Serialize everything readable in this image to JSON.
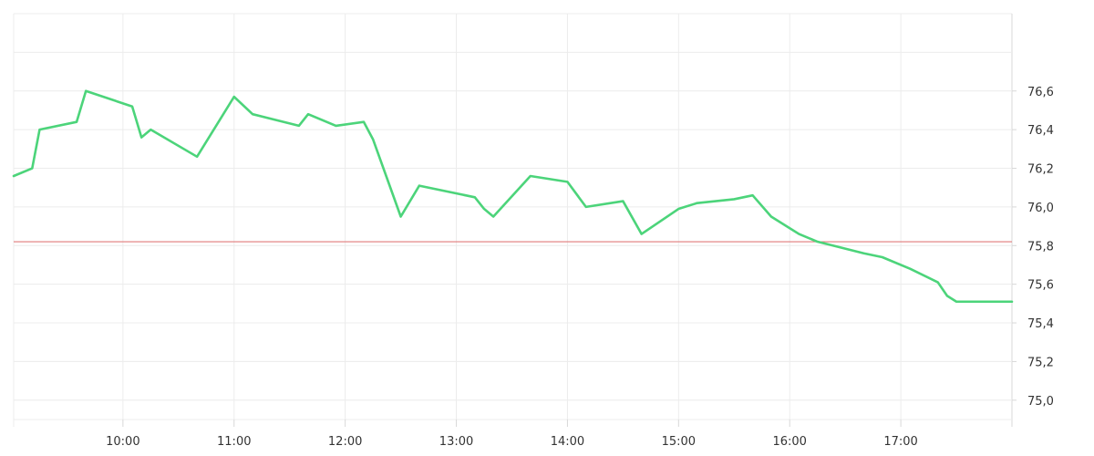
{
  "chart_data": {
    "type": "line",
    "title": "",
    "xlabel": "",
    "ylabel": "",
    "grid": true,
    "x_range": [
      "09:01",
      "18:00"
    ],
    "ylim": [
      74.9,
      77.0
    ],
    "x_ticks": [
      "10:00",
      "11:00",
      "12:00",
      "13:00",
      "14:00",
      "15:00",
      "16:00",
      "17:00"
    ],
    "y_ticks": [
      "75,0",
      "75,2",
      "75,4",
      "75,6",
      "75,8",
      "76,0",
      "76,2",
      "76,4",
      "76,6"
    ],
    "y_tick_values": [
      75.0,
      75.2,
      75.4,
      75.6,
      75.8,
      76.0,
      76.2,
      76.4,
      76.6
    ],
    "reference_line": {
      "value": 75.82,
      "color": "#e07b7b"
    },
    "series": [
      {
        "color": "#4cd47a",
        "points": [
          [
            "09:01",
            76.16
          ],
          [
            "09:11",
            76.2
          ],
          [
            "09:15",
            76.4
          ],
          [
            "09:35",
            76.44
          ],
          [
            "09:40",
            76.6
          ],
          [
            "10:05",
            76.52
          ],
          [
            "10:10",
            76.36
          ],
          [
            "10:15",
            76.4
          ],
          [
            "10:40",
            76.26
          ],
          [
            "11:00",
            76.57
          ],
          [
            "11:10",
            76.48
          ],
          [
            "11:35",
            76.42
          ],
          [
            "11:40",
            76.48
          ],
          [
            "11:55",
            76.42
          ],
          [
            "12:10",
            76.44
          ],
          [
            "12:15",
            76.35
          ],
          [
            "12:30",
            75.95
          ],
          [
            "12:40",
            76.11
          ],
          [
            "13:10",
            76.05
          ],
          [
            "13:15",
            75.99
          ],
          [
            "13:20",
            75.95
          ],
          [
            "13:40",
            76.16
          ],
          [
            "14:00",
            76.13
          ],
          [
            "14:10",
            76.0
          ],
          [
            "14:30",
            76.03
          ],
          [
            "14:40",
            75.86
          ],
          [
            "15:00",
            75.99
          ],
          [
            "15:10",
            76.02
          ],
          [
            "15:30",
            76.04
          ],
          [
            "15:40",
            76.06
          ],
          [
            "15:50",
            75.95
          ],
          [
            "16:05",
            75.86
          ],
          [
            "16:15",
            75.82
          ],
          [
            "16:40",
            75.76
          ],
          [
            "16:50",
            75.74
          ],
          [
            "17:05",
            75.68
          ],
          [
            "17:20",
            75.61
          ],
          [
            "17:25",
            75.54
          ],
          [
            "17:30",
            75.51
          ],
          [
            "18:00",
            75.51
          ]
        ]
      }
    ]
  }
}
